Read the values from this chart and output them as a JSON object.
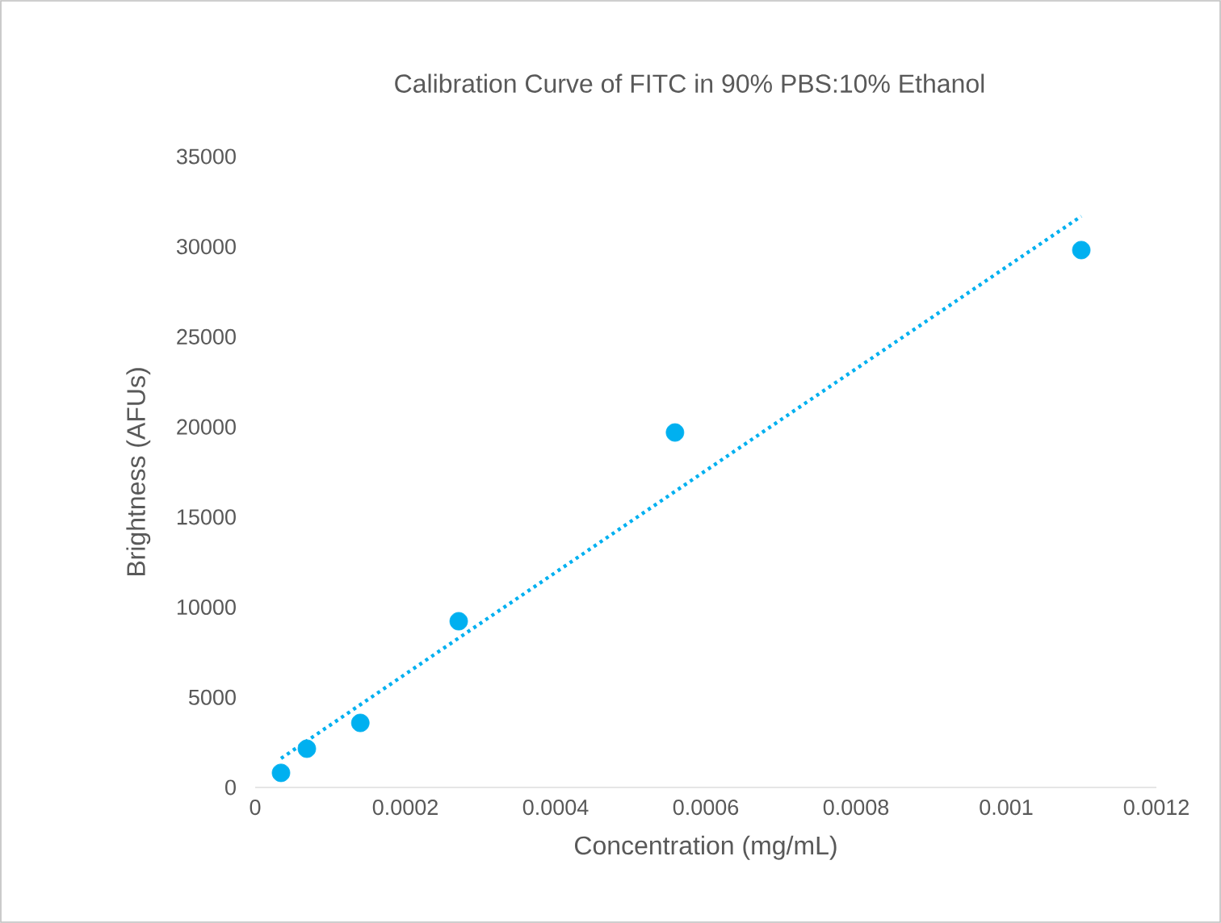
{
  "chart_data": {
    "type": "scatter",
    "title": "Calibration Curve of FITC in 90% PBS:10% Ethanol",
    "xlabel": "Concentration (mg/mL)",
    "ylabel": "Brightness (AFUs)",
    "xlim": [
      0,
      0.0012
    ],
    "ylim": [
      0,
      35000
    ],
    "xticks": [
      0,
      0.0002,
      0.0004,
      0.0006,
      0.0008,
      0.001,
      0.0012
    ],
    "yticks": [
      0,
      5000,
      10000,
      15000,
      20000,
      25000,
      30000,
      35000
    ],
    "grid": false,
    "marker": "circle",
    "series": [
      {
        "x": [
          3.44e-05,
          6.88e-05,
          0.00014,
          0.000271,
          0.000559,
          0.0011
        ],
        "values": [
          810,
          2150,
          3580,
          9220,
          19690,
          29810
        ],
        "color": "#00b0f0"
      },
      {
        "type": "line",
        "x": [
          3.44e-05,
          0.0011
        ],
        "values": [
          1610,
          31690
        ],
        "color": "#00b0f0",
        "line_style": "dotted",
        "marker": "none"
      }
    ]
  }
}
